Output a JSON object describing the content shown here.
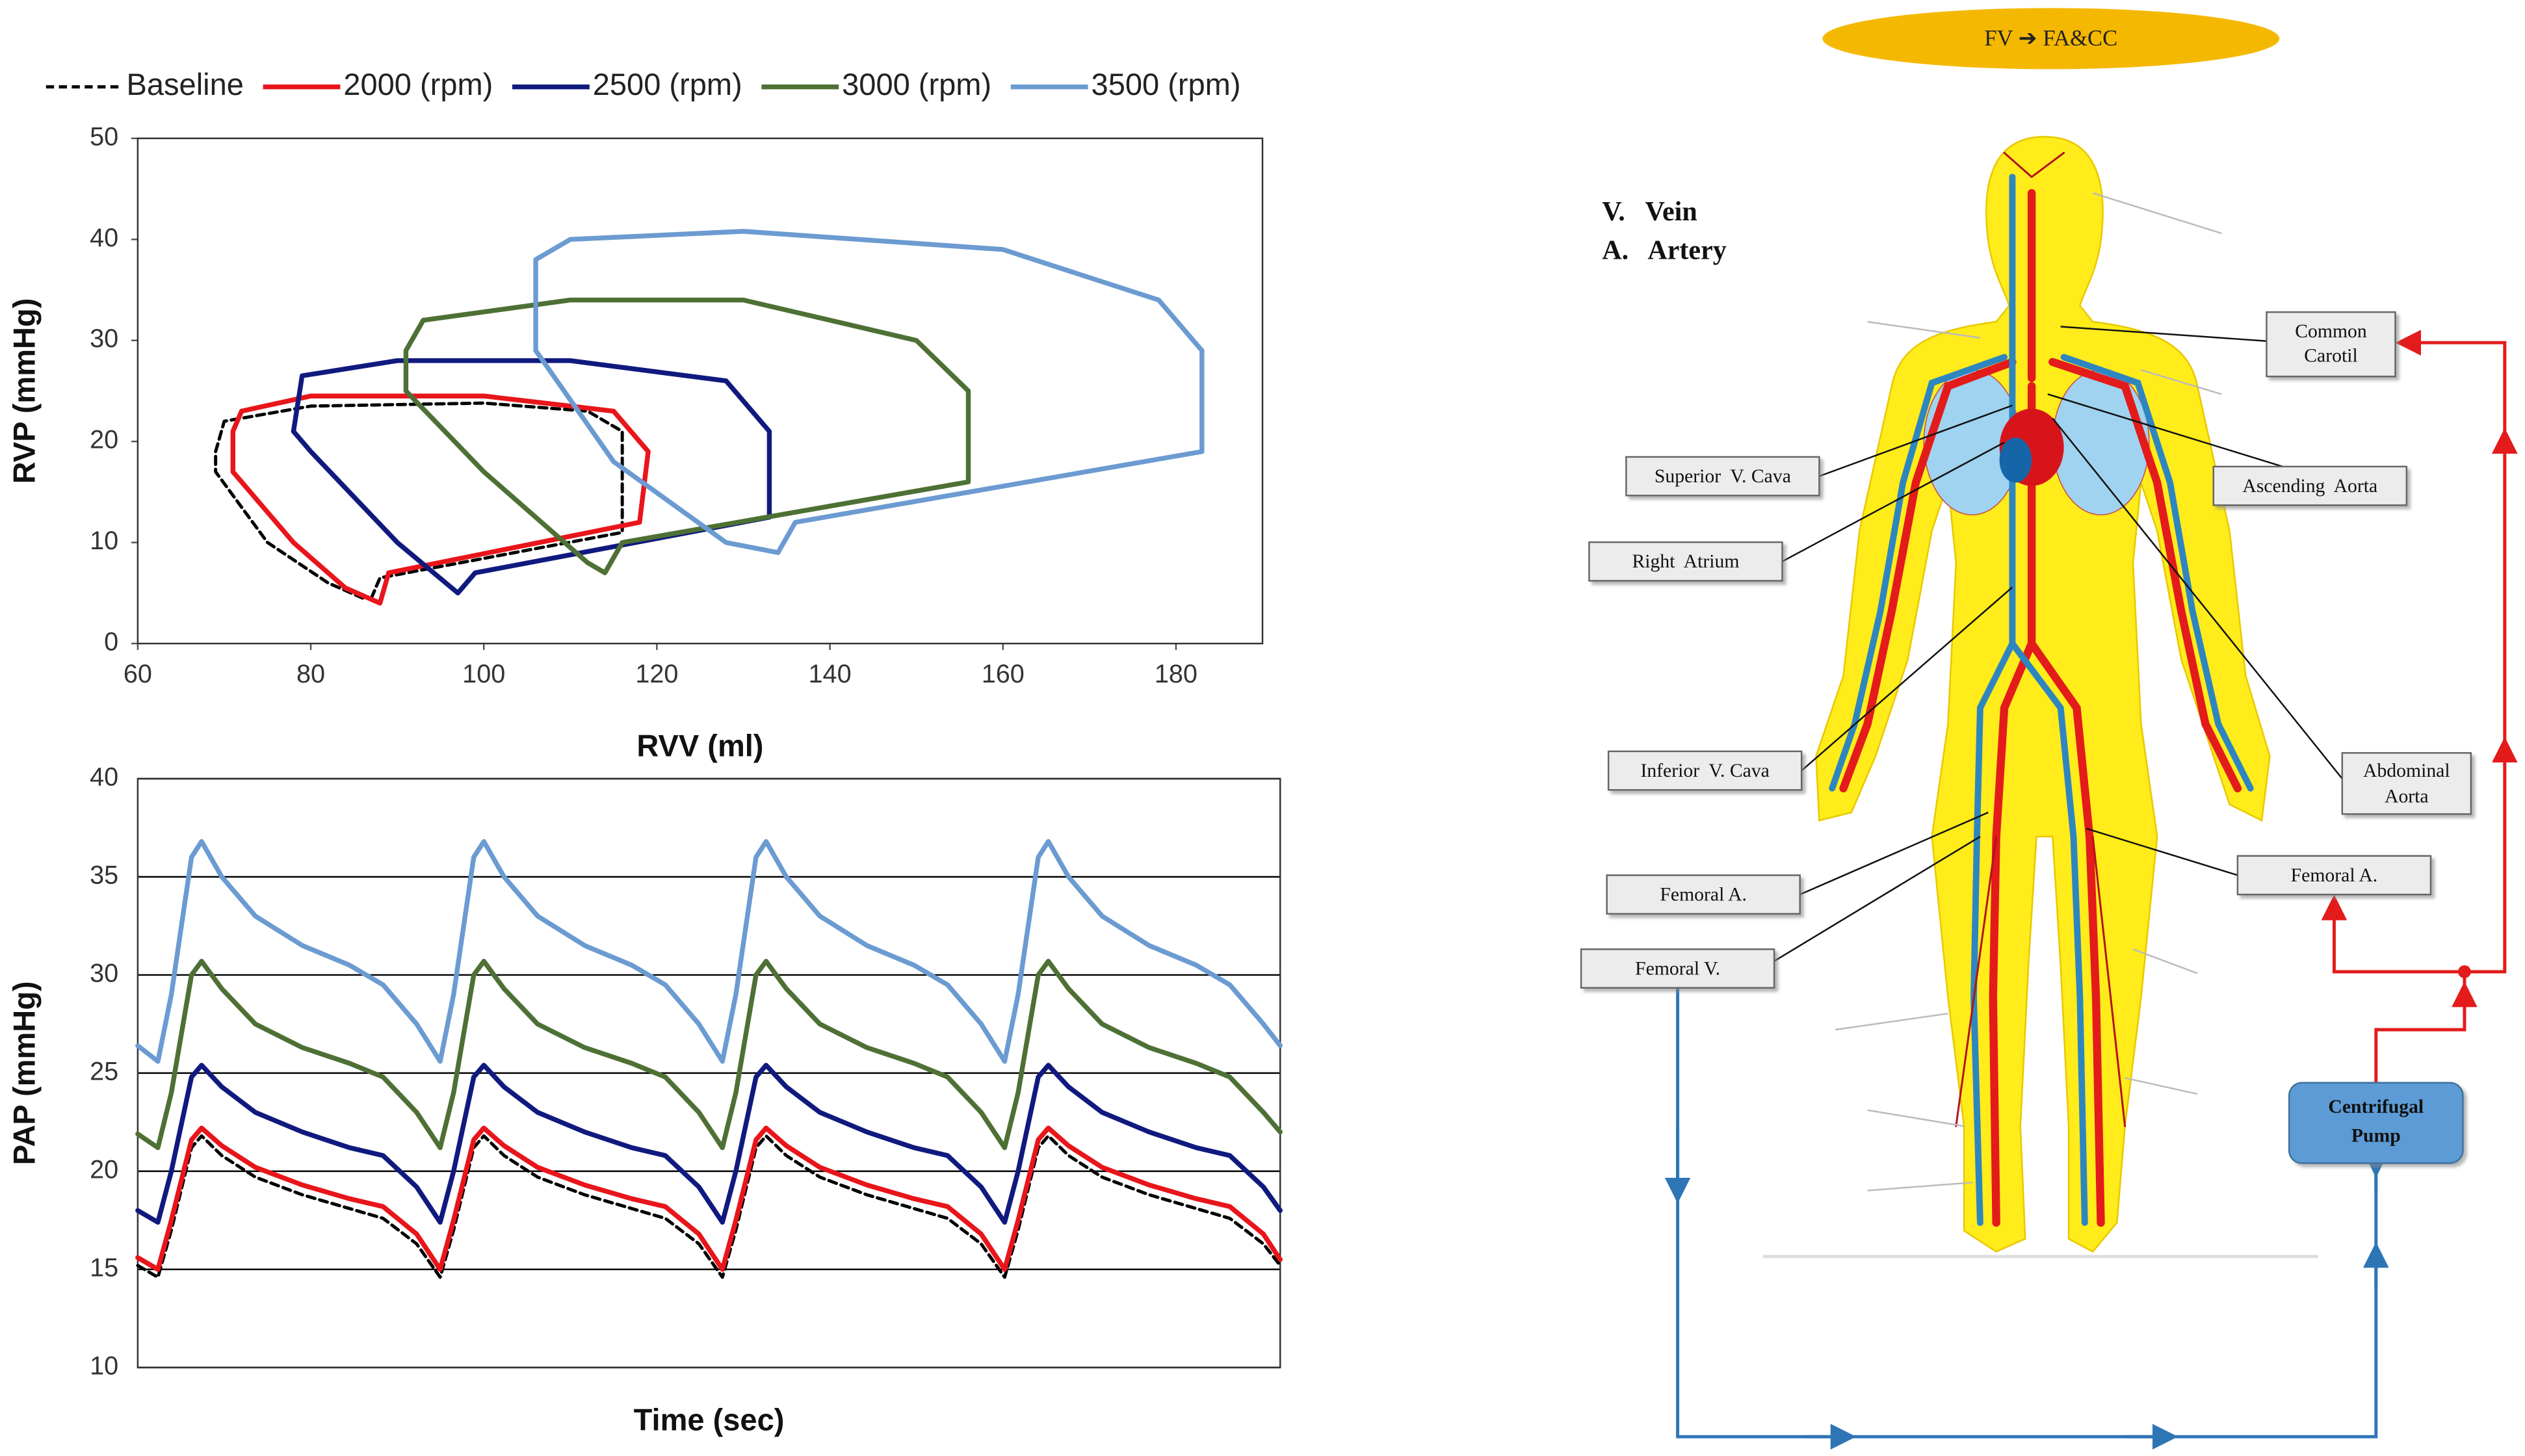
{
  "chart_data": [
    {
      "type": "line",
      "xlabel": "RVV (ml)",
      "ylabel": "RVP (mmHg)",
      "xlim": [
        60,
        190
      ],
      "xticks": [
        60,
        80,
        100,
        120,
        140,
        160,
        180
      ],
      "ylim": [
        0,
        50
      ],
      "yticks": [
        0,
        10,
        20,
        30,
        40,
        50
      ],
      "grid": false,
      "legend": "top",
      "series": [
        {
          "name": "Baseline",
          "color": "#000000",
          "dash": true,
          "x": [
            87,
            88,
            116,
            116,
            112,
            100,
            80,
            70,
            69,
            69,
            75,
            82,
            86
          ],
          "values": [
            4.5,
            6.5,
            11,
            21,
            23,
            23.8,
            23.5,
            22,
            19,
            17,
            10,
            6,
            4.5
          ]
        },
        {
          "name": "2000 (rpm)",
          "color": "#e8151b",
          "dash": false,
          "x": [
            88,
            89,
            118,
            119,
            115,
            100,
            80,
            72,
            71,
            71,
            78,
            84,
            88
          ],
          "values": [
            4,
            7,
            12,
            19,
            23,
            24.5,
            24.5,
            23,
            21,
            17,
            10,
            5.5,
            4
          ]
        },
        {
          "name": "2500 (rpm)",
          "color": "#101a7e",
          "dash": false,
          "x": [
            97,
            99,
            133,
            133,
            128,
            110,
            90,
            79,
            78,
            80,
            90,
            97
          ],
          "values": [
            5,
            7,
            12.5,
            21,
            26,
            28,
            28,
            26.5,
            21,
            19,
            10,
            5
          ]
        },
        {
          "name": "3000 (rpm)",
          "color": "#4e7035",
          "dash": false,
          "x": [
            114,
            116,
            156,
            156,
            150,
            130,
            110,
            93,
            91,
            91,
            100,
            112,
            114
          ],
          "values": [
            7,
            10,
            16,
            25,
            30,
            34,
            34,
            32,
            29,
            25,
            17,
            8,
            7
          ]
        },
        {
          "name": "3500 (rpm)",
          "color": "#6b9bd1",
          "dash": false,
          "x": [
            134,
            136,
            183,
            183,
            178,
            160,
            130,
            110,
            106,
            106,
            115,
            128,
            134
          ],
          "values": [
            9,
            12,
            19,
            29,
            34,
            39,
            40.8,
            40,
            38,
            29,
            18,
            10,
            9
          ]
        }
      ]
    },
    {
      "type": "line",
      "xlabel": "Time (sec)",
      "ylabel": "PAP (mmHg)",
      "xlim": [
        0,
        3.4
      ],
      "ylim": [
        10,
        40
      ],
      "yticks": [
        10,
        15,
        20,
        25,
        30,
        35,
        40
      ],
      "grid": true,
      "x": [
        0,
        0.06,
        0.1,
        0.16,
        0.19,
        0.25,
        0.35,
        0.49,
        0.63,
        0.73,
        0.83,
        0.9,
        0.94,
        1.0,
        1.03,
        1.09,
        1.19,
        1.33,
        1.47,
        1.57,
        1.67,
        1.74,
        1.78,
        1.84,
        1.87,
        1.93,
        2.03,
        2.17,
        2.31,
        2.41,
        2.51,
        2.58,
        2.62,
        2.68,
        2.71,
        2.77,
        2.87,
        3.01,
        3.15,
        3.25,
        3.35,
        3.4
      ],
      "series": [
        {
          "color": "#000000",
          "dash": true,
          "values": [
            15.2,
            14.6,
            17,
            21.2,
            21.8,
            20.8,
            19.7,
            18.8,
            18.1,
            17.6,
            16.3,
            14.6,
            17,
            21.2,
            21.8,
            20.8,
            19.7,
            18.8,
            18.1,
            17.6,
            16.3,
            14.6,
            17,
            21.2,
            21.8,
            20.8,
            19.7,
            18.8,
            18.1,
            17.6,
            16.3,
            14.6,
            17,
            21.2,
            21.8,
            20.8,
            19.7,
            18.8,
            18.1,
            17.6,
            16.3,
            15.2
          ]
        },
        {
          "color": "#e8151b",
          "dash": false,
          "values": [
            15.6,
            15,
            17.5,
            21.6,
            22.2,
            21.3,
            20.2,
            19.3,
            18.6,
            18.2,
            16.8,
            15,
            17.5,
            21.6,
            22.2,
            21.3,
            20.2,
            19.3,
            18.6,
            18.2,
            16.8,
            15,
            17.5,
            21.6,
            22.2,
            21.3,
            20.2,
            19.3,
            18.6,
            18.2,
            16.8,
            15,
            17.5,
            21.6,
            22.2,
            21.3,
            20.2,
            19.3,
            18.6,
            18.2,
            16.8,
            15.5
          ]
        },
        {
          "color": "#101a7e",
          "dash": false,
          "values": [
            18,
            17.4,
            20,
            24.8,
            25.4,
            24.3,
            23,
            22,
            21.2,
            20.8,
            19.2,
            17.4,
            20,
            24.8,
            25.4,
            24.3,
            23,
            22,
            21.2,
            20.8,
            19.2,
            17.4,
            20,
            24.8,
            25.4,
            24.3,
            23,
            22,
            21.2,
            20.8,
            19.2,
            17.4,
            20,
            24.8,
            25.4,
            24.3,
            23,
            22,
            21.2,
            20.8,
            19.2,
            18
          ]
        },
        {
          "color": "#4e7035",
          "dash": false,
          "values": [
            21.9,
            21.2,
            24,
            30,
            30.7,
            29.3,
            27.5,
            26.3,
            25.5,
            24.8,
            23,
            21.2,
            24,
            30,
            30.7,
            29.3,
            27.5,
            26.3,
            25.5,
            24.8,
            23,
            21.2,
            24,
            30,
            30.7,
            29.3,
            27.5,
            26.3,
            25.5,
            24.8,
            23,
            21.2,
            24,
            30,
            30.7,
            29.3,
            27.5,
            26.3,
            25.5,
            24.8,
            23,
            22
          ]
        },
        {
          "color": "#6b9bd1",
          "dash": false,
          "values": [
            26.4,
            25.6,
            29,
            36,
            36.8,
            35,
            33,
            31.5,
            30.5,
            29.5,
            27.5,
            25.6,
            29,
            36,
            36.8,
            35,
            33,
            31.5,
            30.5,
            29.5,
            27.5,
            25.6,
            29,
            36,
            36.8,
            35,
            33,
            31.5,
            30.5,
            29.5,
            27.5,
            25.6,
            29,
            36,
            36.8,
            35,
            33,
            31.5,
            30.5,
            29.5,
            27.5,
            26.4
          ]
        }
      ]
    }
  ],
  "diagram": {
    "title": "FV ➔ FA&CC",
    "key": [
      "V.   Vein",
      "A.   Artery"
    ],
    "labels": {
      "common_carotid": [
        "Common",
        "Carotil"
      ],
      "superior_vena_cava": "Superior  V. Cava",
      "ascending_aorta": "Ascending  Aorta",
      "right_atrium": "Right  Atrium",
      "inferior_vena_cava": "Inferior  V. Cava",
      "abdominal_aorta": [
        "Abdominal",
        "Aorta"
      ],
      "femoral_artery_left": "Femoral A.",
      "femoral_artery_right": "Femoral A.",
      "femoral_vein": "Femoral V.",
      "pump": [
        "Centrifugal",
        "Pump"
      ]
    }
  }
}
